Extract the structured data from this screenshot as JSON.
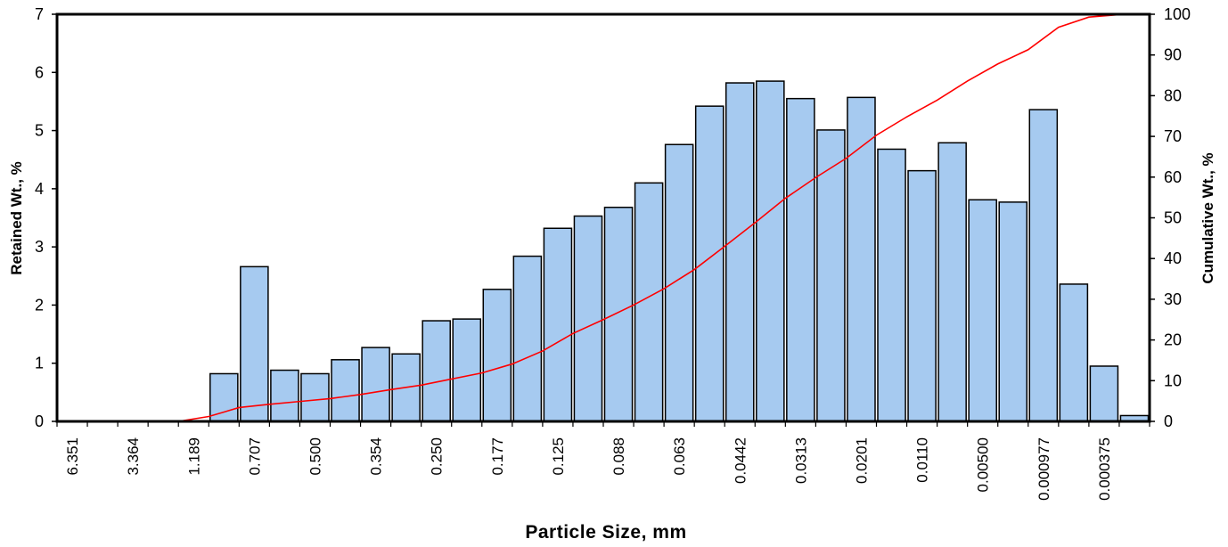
{
  "chart_data": {
    "type": "bar",
    "xlabel": "Particle Size, mm",
    "ylabel": "Retained Wt., %",
    "y2label": "Cumulative Wt., %",
    "ylim": [
      0,
      7
    ],
    "y2lim": [
      0,
      100
    ],
    "y_ticks": [
      "0",
      "1",
      "2",
      "3",
      "4",
      "5",
      "6",
      "7"
    ],
    "y2_ticks": [
      "0",
      "10",
      "20",
      "30",
      "40",
      "50",
      "60",
      "70",
      "80",
      "90",
      "100"
    ],
    "x_tick_labels": [
      "6.351",
      "3.364",
      "1.189",
      "0.707",
      "0.500",
      "0.354",
      "0.250",
      "0.177",
      "0.125",
      "0.088",
      "0.063",
      "0.0442",
      "0.0313",
      "0.0201",
      "0.0110",
      "0.00500",
      "0.000977",
      "0.000375"
    ],
    "grid": false,
    "legend": "none",
    "colors": {
      "bar": "#A6CAF0",
      "bar_edge": "#000000",
      "line": "#FF0000"
    },
    "series": [
      {
        "type": "bar",
        "axis": "left",
        "values": [
          0,
          0,
          0,
          0,
          0,
          0.82,
          2.66,
          0.88,
          0.82,
          1.06,
          1.27,
          1.16,
          1.73,
          1.76,
          2.27,
          2.84,
          3.32,
          3.53,
          3.68,
          4.1,
          4.76,
          5.42,
          5.82,
          5.85,
          5.55,
          5.01,
          5.57,
          4.68,
          4.31,
          4.79,
          3.81,
          3.77,
          5.36,
          2.36,
          0.95,
          0.1
        ]
      },
      {
        "type": "line",
        "axis": "right",
        "values": [
          0,
          0,
          0,
          0,
          0,
          1.2,
          3.4,
          4.2,
          4.9,
          5.6,
          6.6,
          7.8,
          8.9,
          10.4,
          11.9,
          14.1,
          17.3,
          21.6,
          25.0,
          28.6,
          32.6,
          37.3,
          43.0,
          48.8,
          54.8,
          59.9,
          64.6,
          70.3,
          74.8,
          78.9,
          83.6,
          87.8,
          91.3,
          96.8,
          99.3,
          99.9,
          100
        ]
      }
    ]
  }
}
